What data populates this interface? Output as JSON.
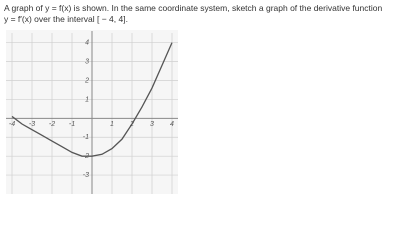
{
  "question": {
    "line1": "A graph of y = f(x) is shown. In the same coordinate system, sketch a graph of the derivative function",
    "line2": "y = f′(x) over the interval [ − 4, 4]."
  },
  "chart_data": {
    "type": "line",
    "x": [
      -4,
      -3.5,
      -3,
      -2.5,
      -2,
      -1.5,
      -1,
      -0.5,
      0,
      0.5,
      1,
      1.5,
      2,
      2.5,
      3,
      3.5,
      4
    ],
    "series": [
      {
        "name": "y = f(x)",
        "color": "#555555",
        "values": [
          0.1,
          -0.3,
          -0.6,
          -0.9,
          -1.2,
          -1.5,
          -1.8,
          -2,
          -2,
          -1.9,
          -1.6,
          -1.1,
          -0.3,
          0.6,
          1.6,
          2.8,
          4
        ]
      }
    ],
    "xlim": [
      -4.3,
      4.3
    ],
    "ylim": [
      -4,
      4.3
    ],
    "xticks": [
      -4,
      -3,
      -2,
      -1,
      1,
      2,
      3,
      4
    ],
    "yticks": [
      -3,
      -2,
      -1,
      1,
      2,
      3,
      4
    ],
    "grid": true
  }
}
